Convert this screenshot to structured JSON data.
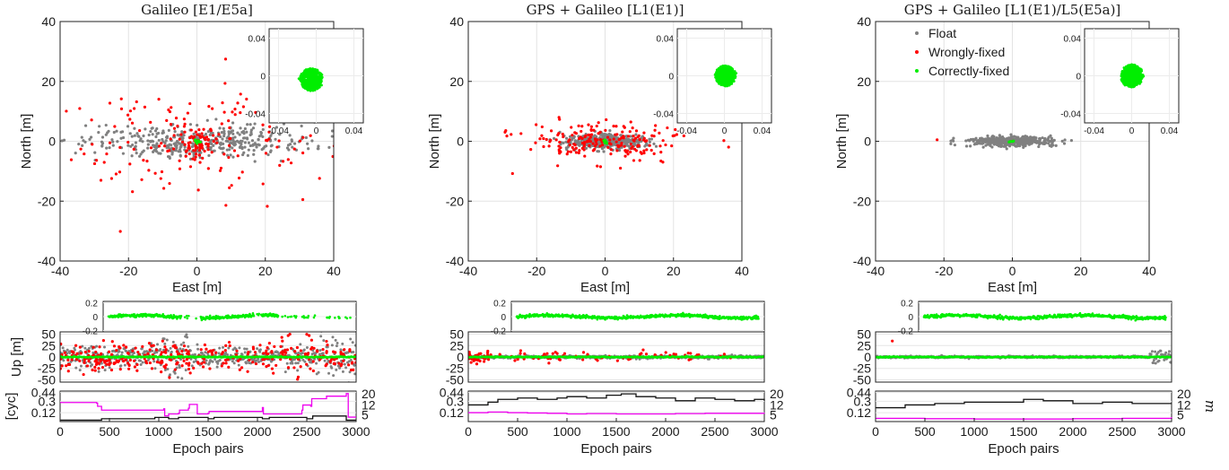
{
  "chart_data": {
    "type": "scatter",
    "legend": {
      "placement": "top-left of third panel",
      "entries": [
        {
          "label": "Float",
          "color": "#808080"
        },
        {
          "label": "Wrongly-fixed",
          "color": "#ff0000"
        },
        {
          "label": "Correctly-fixed",
          "color": "#00ee00"
        }
      ]
    },
    "panels": [
      {
        "title": "Galileo [E1/E5a]",
        "horizontal": {
          "xlabel": "East [m]",
          "ylabel": "North [m]",
          "xlim": [
            -40,
            40
          ],
          "ylim": [
            -40,
            40
          ],
          "xticks": [
            "-40",
            "-20",
            "0",
            "20",
            "40"
          ],
          "yticks": [
            "-40",
            "-20",
            "0",
            "20",
            "40"
          ],
          "float_cloud": {
            "east_spread": 38,
            "north_spread": 6,
            "count": 420
          },
          "wrong_fixed_count": 210,
          "wrong_fixed_spread": {
            "east": 38,
            "north": 20
          },
          "correct_fixed_count": 20
        },
        "inset": {
          "ticks": [
            "0.04",
            "0",
            "-0.04"
          ],
          "xticks": [
            "-0.04",
            "0",
            "0.04"
          ],
          "cloud": {
            "center_x": -0.005,
            "center_y": -0.004,
            "radius": 0.011
          }
        },
        "up": {
          "ylabel": "Up [m]",
          "ylim": [
            -55,
            55
          ],
          "yticks": [
            "50",
            "25",
            "0",
            "-25",
            "-50"
          ],
          "wrong_fixed_density": "high",
          "float_spread": 45
        },
        "up_inset": {
          "ticks": [
            "-0.2",
            "0",
            "0.2"
          ],
          "gaps": true
        },
        "cyc": {
          "ylabel": "[cyc]",
          "left_ticks": [
            "0.44",
            "0.3",
            "0.12"
          ],
          "right_ticks": [
            "20",
            "12",
            "5"
          ],
          "black_m": [
            {
              "epoch": 0,
              "value": 1
            },
            {
              "epoch": 380,
              "value": 1
            },
            {
              "epoch": 420,
              "value": 2
            },
            {
              "epoch": 900,
              "value": 2
            },
            {
              "epoch": 960,
              "value": 3
            },
            {
              "epoch": 1100,
              "value": 2
            },
            {
              "epoch": 1200,
              "value": 3
            },
            {
              "epoch": 1500,
              "value": 2
            },
            {
              "epoch": 1560,
              "value": 3
            },
            {
              "epoch": 2050,
              "value": 2
            },
            {
              "epoch": 2120,
              "value": 3
            },
            {
              "epoch": 2500,
              "value": 2
            },
            {
              "epoch": 2560,
              "value": 4
            },
            {
              "epoch": 2900,
              "value": 1
            },
            {
              "epoch": 3000,
              "value": 1
            }
          ],
          "magenta_ratio": [
            {
              "epoch": 0,
              "value": 0.28
            },
            {
              "epoch": 370,
              "value": 0.27
            },
            {
              "epoch": 380,
              "value": 0.22
            },
            {
              "epoch": 420,
              "value": 0.16
            },
            {
              "epoch": 1050,
              "value": 0.18
            },
            {
              "epoch": 1060,
              "value": 0.07
            },
            {
              "epoch": 1100,
              "value": 0.1
            },
            {
              "epoch": 1200,
              "value": 0.11
            },
            {
              "epoch": 1210,
              "value": 0.16
            },
            {
              "epoch": 1300,
              "value": 0.19
            },
            {
              "epoch": 1310,
              "value": 0.25
            },
            {
              "epoch": 1380,
              "value": 0.25
            },
            {
              "epoch": 1390,
              "value": 0.1
            },
            {
              "epoch": 1500,
              "value": 0.11
            },
            {
              "epoch": 1510,
              "value": 0.14
            },
            {
              "epoch": 2050,
              "value": 0.2
            },
            {
              "epoch": 2060,
              "value": 0.1
            },
            {
              "epoch": 2450,
              "value": 0.16
            },
            {
              "epoch": 2460,
              "value": 0.24
            },
            {
              "epoch": 2540,
              "value": 0.22
            },
            {
              "epoch": 2550,
              "value": 0.34
            },
            {
              "epoch": 2700,
              "value": 0.38
            },
            {
              "epoch": 2900,
              "value": 0.42
            },
            {
              "epoch": 2920,
              "value": 0.05
            },
            {
              "epoch": 3000,
              "value": 0.05
            }
          ]
        },
        "xlabel": "Epoch pairs",
        "xticks": [
          "0",
          "500",
          "1000",
          "1500",
          "2000",
          "2500",
          "3000"
        ]
      },
      {
        "title": "GPS + Galileo [L1(E1)]",
        "horizontal": {
          "xlabel": "East [m]",
          "ylabel": "North [m]",
          "xlim": [
            -40,
            40
          ],
          "ylim": [
            -40,
            40
          ],
          "xticks": [
            "-40",
            "-20",
            "0",
            "20",
            "40"
          ],
          "yticks": [
            "-40",
            "-20",
            "0",
            "20",
            "40"
          ],
          "float_cloud": {
            "east_spread": 12,
            "north_spread": 2.8,
            "count": 420
          },
          "wrong_fixed_count": 200,
          "wrong_fixed_spread": {
            "east": 22,
            "north": 6
          },
          "correct_fixed_count": 6
        },
        "inset": {
          "ticks": [
            "0.04",
            "0",
            "-0.04"
          ],
          "xticks": [
            "-0.04",
            "0",
            "0.04"
          ],
          "cloud": {
            "center_x": 0.001,
            "center_y": 0.0,
            "radius": 0.01
          }
        },
        "up": {
          "ylabel": "",
          "ylim": [
            -55,
            55
          ],
          "yticks": [
            "50",
            "25",
            "0",
            "-25",
            "-50"
          ],
          "wrong_fixed_density": "low",
          "float_spread": 6
        },
        "up_inset": {
          "ticks": [
            "-0.2",
            "0",
            "0.2"
          ],
          "gaps": false
        },
        "cyc": {
          "ylabel": "",
          "left_ticks": [
            "0.44",
            "0.3",
            "0.12"
          ],
          "right_ticks": [
            "20",
            "12",
            "5"
          ],
          "black_m": [
            {
              "epoch": 0,
              "value": 12
            },
            {
              "epoch": 200,
              "value": 14
            },
            {
              "epoch": 300,
              "value": 16
            },
            {
              "epoch": 500,
              "value": 17
            },
            {
              "epoch": 700,
              "value": 16
            },
            {
              "epoch": 900,
              "value": 17
            },
            {
              "epoch": 1000,
              "value": 18
            },
            {
              "epoch": 1200,
              "value": 17
            },
            {
              "epoch": 1400,
              "value": 19
            },
            {
              "epoch": 1550,
              "value": 20
            },
            {
              "epoch": 1700,
              "value": 18
            },
            {
              "epoch": 1900,
              "value": 17
            },
            {
              "epoch": 2100,
              "value": 15
            },
            {
              "epoch": 2300,
              "value": 17
            },
            {
              "epoch": 2500,
              "value": 16
            },
            {
              "epoch": 2700,
              "value": 15
            },
            {
              "epoch": 2900,
              "value": 16
            },
            {
              "epoch": 3000,
              "value": 15
            }
          ],
          "magenta_ratio": [
            {
              "epoch": 0,
              "value": 0.12
            },
            {
              "epoch": 200,
              "value": 0.13
            },
            {
              "epoch": 400,
              "value": 0.12
            },
            {
              "epoch": 600,
              "value": 0.115
            },
            {
              "epoch": 800,
              "value": 0.11
            },
            {
              "epoch": 1000,
              "value": 0.1
            },
            {
              "epoch": 1200,
              "value": 0.105
            },
            {
              "epoch": 1500,
              "value": 0.1
            },
            {
              "epoch": 1800,
              "value": 0.1
            },
            {
              "epoch": 2100,
              "value": 0.105
            },
            {
              "epoch": 2400,
              "value": 0.11
            },
            {
              "epoch": 2700,
              "value": 0.11
            },
            {
              "epoch": 3000,
              "value": 0.105
            }
          ]
        },
        "xlabel": "Epoch pairs",
        "xticks": [
          "0",
          "500",
          "1000",
          "1500",
          "2000",
          "2500",
          "3000"
        ]
      },
      {
        "title": "GPS + Galileo [L1(E1)/L5(E5a)]",
        "horizontal": {
          "xlabel": "East [m]",
          "ylabel": "North [m]",
          "xlim": [
            -40,
            40
          ],
          "ylim": [
            -40,
            40
          ],
          "xticks": [
            "-40",
            "-20",
            "0",
            "20",
            "40"
          ],
          "yticks": [
            "-40",
            "-20",
            "0",
            "20",
            "40"
          ],
          "float_cloud": {
            "east_spread": 14,
            "north_spread": 1.8,
            "count": 450
          },
          "wrong_fixed_count": 2,
          "wrong_fixed_spread": {
            "east": 22,
            "north": 1
          },
          "correct_fixed_count": 4
        },
        "inset": {
          "ticks": [
            "0.04",
            "0",
            "-0.04"
          ],
          "xticks": [
            "-0.04",
            "0",
            "0.04"
          ],
          "cloud": {
            "center_x": 0.0,
            "center_y": 0.0,
            "radius": 0.011
          }
        },
        "up": {
          "ylabel": "",
          "ylim": [
            -55,
            55
          ],
          "yticks": [
            "50",
            "25",
            "0",
            "-25",
            "-50"
          ],
          "wrong_fixed_density": "none",
          "float_spread": 4
        },
        "up_inset": {
          "ticks": [
            "-0.2",
            "0",
            "0.2"
          ],
          "gaps": false
        },
        "cyc": {
          "ylabel": "",
          "left_ticks": [
            "0.44",
            "0.3",
            "0.12"
          ],
          "right_ticks": [
            "20",
            "12",
            "5"
          ],
          "right_label": "m",
          "black_m": [
            {
              "epoch": 0,
              "value": 10
            },
            {
              "epoch": 300,
              "value": 12
            },
            {
              "epoch": 600,
              "value": 13
            },
            {
              "epoch": 900,
              "value": 14
            },
            {
              "epoch": 1200,
              "value": 14
            },
            {
              "epoch": 1500,
              "value": 16
            },
            {
              "epoch": 1700,
              "value": 15
            },
            {
              "epoch": 2000,
              "value": 13
            },
            {
              "epoch": 2300,
              "value": 14
            },
            {
              "epoch": 2600,
              "value": 13
            },
            {
              "epoch": 2800,
              "value": 13
            },
            {
              "epoch": 3000,
              "value": 13
            }
          ],
          "magenta_ratio": [
            {
              "epoch": 0,
              "value": 0.03
            },
            {
              "epoch": 500,
              "value": 0.025
            },
            {
              "epoch": 1000,
              "value": 0.02
            },
            {
              "epoch": 1500,
              "value": 0.02
            },
            {
              "epoch": 2000,
              "value": 0.025
            },
            {
              "epoch": 2500,
              "value": 0.03
            },
            {
              "epoch": 3000,
              "value": 0.05
            }
          ]
        },
        "xlabel": "Epoch pairs",
        "xticks": [
          "0",
          "500",
          "1000",
          "1500",
          "2000",
          "2500",
          "3000"
        ]
      }
    ]
  }
}
